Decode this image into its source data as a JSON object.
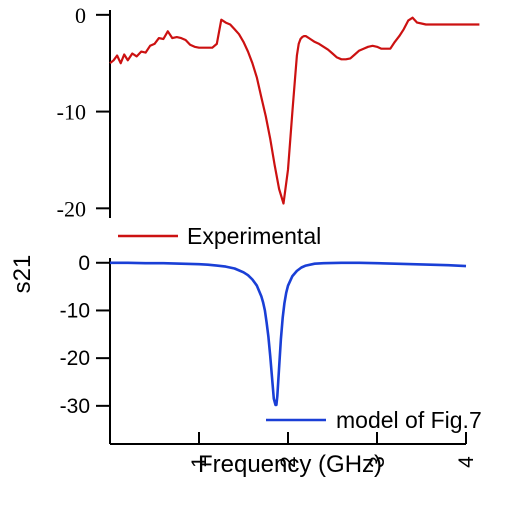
{
  "chart_data": [
    {
      "type": "line",
      "panel": "top",
      "title": "",
      "ylabel": "s21",
      "xlabel": "",
      "xlim": [
        0,
        4
      ],
      "ylim": [
        -21,
        0.5
      ],
      "y_ticks": [
        0,
        -10,
        -20
      ],
      "y_tick_labels": [
        "0",
        "-10",
        "-20"
      ],
      "grid": false,
      "legend": "bottom-left",
      "series": [
        {
          "name": "Experimental",
          "color": "#cc1111",
          "x": [
            0.0,
            0.04,
            0.08,
            0.12,
            0.16,
            0.2,
            0.25,
            0.3,
            0.35,
            0.4,
            0.45,
            0.5,
            0.55,
            0.6,
            0.65,
            0.7,
            0.75,
            0.8,
            0.85,
            0.9,
            0.95,
            1.0,
            1.05,
            1.1,
            1.15,
            1.2,
            1.25,
            1.3,
            1.35,
            1.4,
            1.45,
            1.5,
            1.55,
            1.6,
            1.65,
            1.7,
            1.75,
            1.8,
            1.85,
            1.9,
            1.95,
            2.0,
            2.05,
            2.08,
            2.1,
            2.12,
            2.14,
            2.16,
            2.18,
            2.2,
            2.25,
            2.3,
            2.35,
            2.4,
            2.45,
            2.5,
            2.55,
            2.6,
            2.65,
            2.7,
            2.75,
            2.8,
            2.85,
            2.9,
            2.95,
            3.0,
            3.05,
            3.1,
            3.15,
            3.2,
            3.25,
            3.3,
            3.35,
            3.4,
            3.45,
            3.5,
            3.55,
            3.6,
            3.65,
            3.7,
            3.75,
            3.8,
            3.85,
            3.9,
            3.95,
            4.0,
            4.05,
            4.1,
            4.15
          ],
          "values": [
            -5.0,
            -4.7,
            -4.2,
            -5.0,
            -4.1,
            -4.7,
            -4.0,
            -4.3,
            -3.8,
            -3.9,
            -3.2,
            -3.0,
            -2.4,
            -2.5,
            -1.7,
            -2.4,
            -2.3,
            -2.4,
            -2.6,
            -3.1,
            -3.3,
            -3.4,
            -3.4,
            -3.4,
            -3.4,
            -3.0,
            -0.5,
            -0.8,
            -1.0,
            -1.5,
            -2.0,
            -2.8,
            -3.8,
            -5.0,
            -6.5,
            -8.5,
            -10.5,
            -12.8,
            -15.5,
            -18.0,
            -19.5,
            -16.0,
            -10.0,
            -6.5,
            -4.2,
            -3.0,
            -2.5,
            -2.3,
            -2.2,
            -2.2,
            -2.5,
            -2.8,
            -3.0,
            -3.3,
            -3.6,
            -4.0,
            -4.4,
            -4.6,
            -4.6,
            -4.5,
            -4.1,
            -3.7,
            -3.5,
            -3.3,
            -3.2,
            -3.3,
            -3.5,
            -3.5,
            -3.5,
            -2.8,
            -2.2,
            -1.5,
            -0.6,
            -0.3,
            -0.8,
            -0.9,
            -1.0,
            -1.0,
            -1.0,
            -1.0,
            -1.0,
            -1.0,
            -1.0,
            -1.0,
            -1.0,
            -1.0,
            -1.0,
            -1.0,
            -1.0
          ]
        }
      ]
    },
    {
      "type": "line",
      "panel": "bottom",
      "title": "",
      "xlabel": "Frequency (GHz)",
      "ylabel": "",
      "xlim": [
        0,
        4
      ],
      "ylim": [
        -38,
        1
      ],
      "x_ticks": [
        1,
        2,
        3,
        4
      ],
      "x_tick_labels": [
        "1",
        "2",
        "3",
        "4"
      ],
      "y_ticks": [
        0,
        -10,
        -20,
        -30
      ],
      "y_tick_labels": [
        "0",
        "-10",
        "-20",
        "-30"
      ],
      "grid": false,
      "legend": "bottom-right",
      "series": [
        {
          "name": "model of Fig.7",
          "color": "#1a3fd6",
          "x": [
            0.0,
            0.2,
            0.4,
            0.6,
            0.8,
            1.0,
            1.1,
            1.2,
            1.3,
            1.4,
            1.5,
            1.55,
            1.6,
            1.65,
            1.7,
            1.72,
            1.74,
            1.76,
            1.78,
            1.8,
            1.82,
            1.84,
            1.86,
            1.87,
            1.88,
            1.9,
            1.92,
            1.94,
            1.96,
            1.98,
            2.0,
            2.05,
            2.1,
            2.15,
            2.2,
            2.3,
            2.4,
            2.6,
            2.8,
            3.0,
            3.2,
            3.4,
            3.6,
            3.8,
            4.0
          ],
          "values": [
            0.0,
            0.0,
            -0.1,
            -0.1,
            -0.2,
            -0.3,
            -0.4,
            -0.6,
            -0.8,
            -1.2,
            -2.0,
            -2.6,
            -3.5,
            -4.8,
            -7.0,
            -8.3,
            -10.0,
            -12.5,
            -15.5,
            -19.5,
            -24.0,
            -28.5,
            -29.8,
            -29.8,
            -28.0,
            -22.0,
            -16.0,
            -11.5,
            -8.5,
            -6.3,
            -4.8,
            -2.8,
            -1.7,
            -1.0,
            -0.6,
            -0.2,
            -0.1,
            0.0,
            0.0,
            -0.1,
            -0.2,
            -0.3,
            -0.4,
            -0.5,
            -0.7
          ]
        }
      ]
    }
  ]
}
